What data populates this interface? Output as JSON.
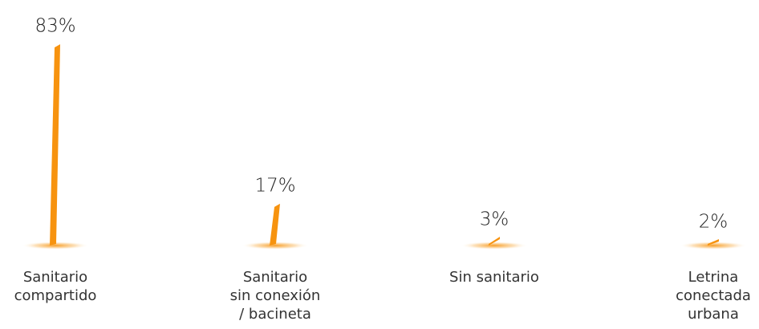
{
  "chart_data": {
    "type": "bar",
    "categories": [
      "Sanitario\ncompartido",
      "Sanitario\nsin conexión\n/ bacineta",
      "Sin sanitario",
      "Letrina\nconectada\nurbana"
    ],
    "values": [
      83,
      17,
      3,
      2
    ],
    "value_labels": [
      "83%",
      "17%",
      "3%",
      "2%"
    ],
    "color": "#f7930f"
  }
}
